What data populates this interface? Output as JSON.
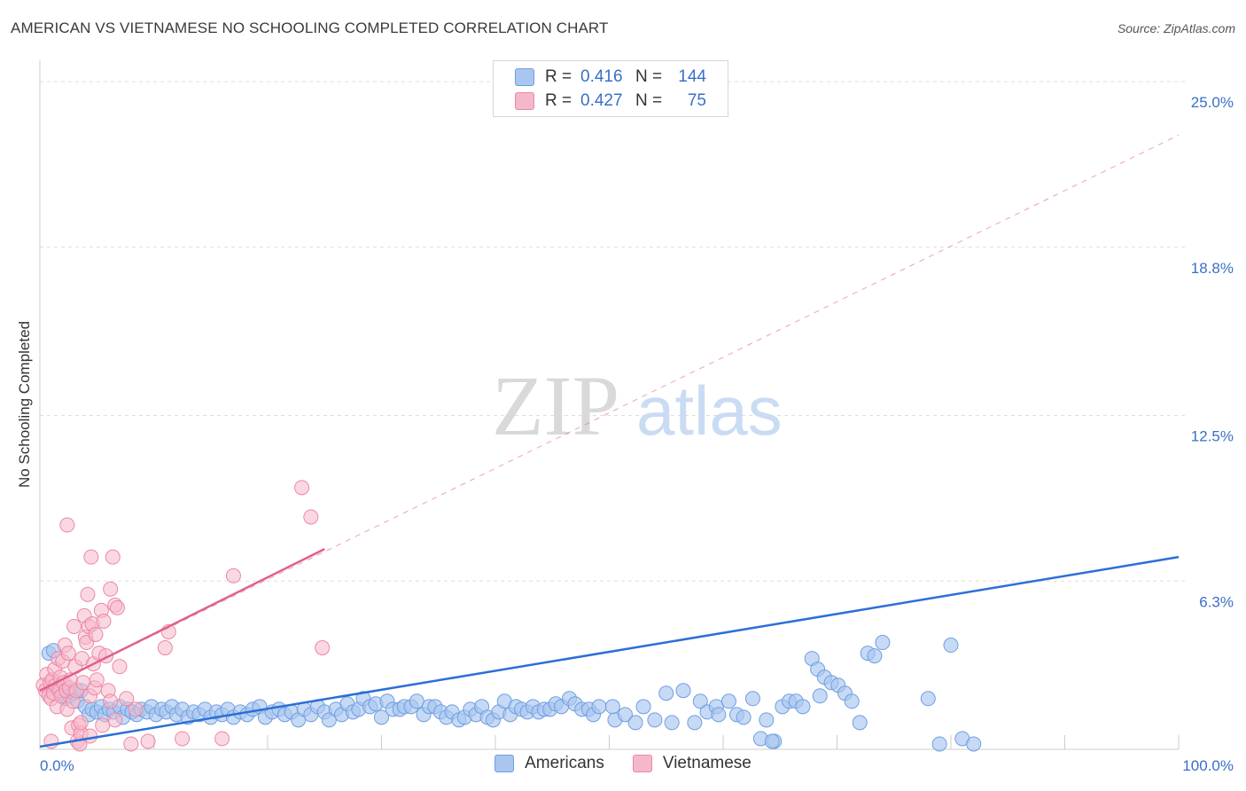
{
  "header": {
    "title": "AMERICAN VS VIETNAMESE NO SCHOOLING COMPLETED CORRELATION CHART",
    "source": "Source: ZipAtlas.com"
  },
  "watermark": {
    "zip": "ZIP",
    "atlas": "atlas"
  },
  "legend": {
    "rows": [
      {
        "r_label": "R =",
        "r_value": "0.416",
        "n_label": "N =",
        "n_value": "144",
        "color": "#a9c6f0"
      },
      {
        "r_label": "R =",
        "r_value": "0.427",
        "n_label": "N =",
        "n_value": "75",
        "color": "#f5b8cb"
      }
    ]
  },
  "bottom_legend": {
    "americans": "Americans",
    "vietnamese": "Vietnamese"
  },
  "colors": {
    "americans_fill": "#a9c6f0",
    "americans_stroke": "#6f9ee0",
    "americans_line": "#2a6fd6",
    "vietnamese_fill": "#f5b8cb",
    "vietnamese_stroke": "#ec87a6",
    "vietnamese_line": "#e0608a",
    "grid": "#dedede",
    "tick_label": "#3a6fc8"
  },
  "chart_data": {
    "type": "scatter",
    "title": "AMERICAN VS VIETNAMESE NO SCHOOLING COMPLETED CORRELATION CHART",
    "xlabel": "",
    "ylabel": "No Schooling Completed",
    "xlim": [
      0,
      100
    ],
    "ylim": [
      0,
      25.8
    ],
    "x_tick_labels": [
      "0.0%",
      "100.0%"
    ],
    "y_ticks": [
      6.3,
      12.5,
      18.8,
      25.0
    ],
    "y_tick_labels": [
      "6.3%",
      "12.5%",
      "18.8%",
      "25.0%"
    ],
    "grid": true,
    "series": [
      {
        "name": "Americans",
        "r": 0.416,
        "n": 144,
        "trend": {
          "x": [
            0,
            100
          ],
          "y": [
            0.1,
            7.2
          ]
        },
        "points": [
          [
            0.8,
            3.6
          ],
          [
            1.2,
            3.7
          ],
          [
            1.5,
            2.3
          ],
          [
            1.8,
            2.1
          ],
          [
            2.2,
            1.9
          ],
          [
            2.6,
            2.0
          ],
          [
            3.0,
            2.1
          ],
          [
            3.3,
            1.8
          ],
          [
            3.6,
            2.2
          ],
          [
            4.0,
            1.6
          ],
          [
            4.3,
            1.3
          ],
          [
            4.6,
            1.5
          ],
          [
            5.0,
            1.4
          ],
          [
            5.4,
            1.6
          ],
          [
            5.7,
            1.3
          ],
          [
            6.1,
            1.5
          ],
          [
            6.5,
            1.4
          ],
          [
            7.0,
            1.6
          ],
          [
            7.3,
            1.2
          ],
          [
            7.7,
            1.5
          ],
          [
            8.1,
            1.4
          ],
          [
            8.5,
            1.3
          ],
          [
            8.9,
            1.5
          ],
          [
            9.4,
            1.4
          ],
          [
            9.8,
            1.6
          ],
          [
            10.2,
            1.3
          ],
          [
            10.7,
            1.5
          ],
          [
            11.1,
            1.4
          ],
          [
            11.6,
            1.6
          ],
          [
            12.0,
            1.3
          ],
          [
            12.5,
            1.5
          ],
          [
            13.0,
            1.2
          ],
          [
            13.5,
            1.4
          ],
          [
            14.0,
            1.3
          ],
          [
            14.5,
            1.5
          ],
          [
            15.0,
            1.2
          ],
          [
            15.5,
            1.4
          ],
          [
            16.0,
            1.3
          ],
          [
            16.5,
            1.5
          ],
          [
            17.0,
            1.2
          ],
          [
            17.6,
            1.4
          ],
          [
            18.2,
            1.3
          ],
          [
            18.7,
            1.5
          ],
          [
            19.3,
            1.6
          ],
          [
            19.8,
            1.2
          ],
          [
            20.4,
            1.4
          ],
          [
            21.0,
            1.5
          ],
          [
            21.5,
            1.3
          ],
          [
            22.1,
            1.4
          ],
          [
            22.7,
            1.1
          ],
          [
            23.2,
            1.5
          ],
          [
            23.8,
            1.3
          ],
          [
            24.4,
            1.6
          ],
          [
            25.0,
            1.4
          ],
          [
            25.4,
            1.1
          ],
          [
            26.0,
            1.5
          ],
          [
            26.5,
            1.3
          ],
          [
            27.0,
            1.7
          ],
          [
            27.5,
            1.4
          ],
          [
            28.0,
            1.5
          ],
          [
            28.4,
            1.9
          ],
          [
            29.0,
            1.6
          ],
          [
            29.5,
            1.7
          ],
          [
            30.0,
            1.2
          ],
          [
            30.5,
            1.8
          ],
          [
            31.0,
            1.5
          ],
          [
            31.6,
            1.5
          ],
          [
            32.0,
            1.6
          ],
          [
            32.6,
            1.6
          ],
          [
            33.1,
            1.8
          ],
          [
            33.7,
            1.3
          ],
          [
            34.2,
            1.6
          ],
          [
            34.7,
            1.6
          ],
          [
            35.2,
            1.4
          ],
          [
            35.7,
            1.2
          ],
          [
            36.2,
            1.4
          ],
          [
            36.8,
            1.1
          ],
          [
            37.3,
            1.2
          ],
          [
            37.8,
            1.5
          ],
          [
            38.3,
            1.3
          ],
          [
            38.8,
            1.6
          ],
          [
            39.3,
            1.2
          ],
          [
            39.8,
            1.1
          ],
          [
            40.3,
            1.4
          ],
          [
            40.8,
            1.8
          ],
          [
            41.3,
            1.3
          ],
          [
            41.8,
            1.6
          ],
          [
            42.3,
            1.5
          ],
          [
            42.8,
            1.4
          ],
          [
            43.3,
            1.6
          ],
          [
            43.8,
            1.4
          ],
          [
            44.3,
            1.5
          ],
          [
            44.8,
            1.5
          ],
          [
            45.3,
            1.7
          ],
          [
            45.8,
            1.6
          ],
          [
            46.5,
            1.9
          ],
          [
            47.0,
            1.7
          ],
          [
            47.6,
            1.5
          ],
          [
            48.2,
            1.5
          ],
          [
            48.6,
            1.3
          ],
          [
            49.1,
            1.6
          ],
          [
            50.3,
            1.6
          ],
          [
            50.5,
            1.1
          ],
          [
            51.4,
            1.3
          ],
          [
            52.3,
            1.0
          ],
          [
            53.0,
            1.6
          ],
          [
            54.0,
            1.1
          ],
          [
            55.0,
            2.1
          ],
          [
            55.5,
            1.0
          ],
          [
            56.5,
            2.2
          ],
          [
            57.5,
            1.0
          ],
          [
            58.0,
            1.8
          ],
          [
            58.6,
            1.4
          ],
          [
            59.4,
            1.6
          ],
          [
            59.6,
            1.3
          ],
          [
            60.5,
            1.8
          ],
          [
            61.2,
            1.3
          ],
          [
            61.8,
            1.2
          ],
          [
            62.6,
            1.9
          ],
          [
            63.3,
            0.4
          ],
          [
            63.8,
            1.1
          ],
          [
            64.5,
            0.3
          ],
          [
            65.2,
            1.6
          ],
          [
            65.8,
            1.8
          ],
          [
            66.4,
            1.8
          ],
          [
            67.0,
            1.6
          ],
          [
            67.8,
            3.4
          ],
          [
            68.3,
            3.0
          ],
          [
            68.9,
            2.7
          ],
          [
            69.5,
            2.5
          ],
          [
            70.1,
            2.4
          ],
          [
            70.7,
            2.1
          ],
          [
            71.3,
            1.8
          ],
          [
            72.0,
            1.0
          ],
          [
            72.7,
            3.6
          ],
          [
            73.3,
            3.5
          ],
          [
            74.0,
            4.0
          ],
          [
            68.5,
            2.0
          ],
          [
            78.0,
            1.9
          ],
          [
            79.0,
            0.2
          ],
          [
            80.0,
            3.9
          ],
          [
            81.0,
            0.4
          ],
          [
            82.0,
            0.2
          ],
          [
            64.3,
            0.3
          ]
        ]
      },
      {
        "name": "Vietnamese",
        "r": 0.427,
        "n": 75,
        "trend": {
          "x": [
            0,
            25
          ],
          "y": [
            2.2,
            7.5
          ],
          "x_ext": [
            0,
            100
          ],
          "y_ext": [
            2.2,
            23.0
          ]
        },
        "points": [
          [
            0.3,
            2.4
          ],
          [
            0.5,
            2.2
          ],
          [
            0.6,
            2.8
          ],
          [
            0.8,
            2.0
          ],
          [
            0.9,
            2.5
          ],
          [
            1.0,
            1.9
          ],
          [
            1.1,
            2.6
          ],
          [
            1.2,
            2.1
          ],
          [
            1.3,
            3.0
          ],
          [
            1.4,
            2.4
          ],
          [
            1.5,
            1.6
          ],
          [
            1.6,
            3.4
          ],
          [
            1.7,
            2.2
          ],
          [
            1.8,
            2.7
          ],
          [
            1.9,
            2.0
          ],
          [
            2.0,
            3.3
          ],
          [
            2.1,
            2.5
          ],
          [
            2.2,
            3.9
          ],
          [
            2.3,
            2.2
          ],
          [
            2.4,
            1.5
          ],
          [
            2.5,
            3.6
          ],
          [
            2.6,
            2.3
          ],
          [
            2.7,
            2.6
          ],
          [
            2.8,
            0.8
          ],
          [
            2.9,
            1.8
          ],
          [
            3.0,
            4.6
          ],
          [
            3.1,
            3.1
          ],
          [
            3.2,
            2.2
          ],
          [
            3.3,
            0.3
          ],
          [
            3.4,
            0.9
          ],
          [
            3.5,
            0.2
          ],
          [
            3.6,
            0.6
          ],
          [
            3.7,
            3.4
          ],
          [
            3.8,
            2.5
          ],
          [
            3.9,
            5.0
          ],
          [
            4.0,
            4.2
          ],
          [
            4.1,
            4.0
          ],
          [
            4.2,
            5.8
          ],
          [
            4.3,
            4.6
          ],
          [
            4.4,
            2.0
          ],
          [
            4.5,
            7.2
          ],
          [
            4.6,
            4.7
          ],
          [
            4.7,
            3.2
          ],
          [
            4.8,
            2.3
          ],
          [
            4.9,
            4.3
          ],
          [
            5.0,
            2.6
          ],
          [
            5.2,
            3.6
          ],
          [
            5.4,
            5.2
          ],
          [
            5.6,
            4.8
          ],
          [
            5.8,
            3.5
          ],
          [
            6.0,
            2.2
          ],
          [
            6.2,
            6.0
          ],
          [
            6.4,
            7.2
          ],
          [
            6.6,
            5.4
          ],
          [
            6.8,
            5.3
          ],
          [
            7.0,
            3.1
          ],
          [
            6.2,
            1.8
          ],
          [
            6.6,
            1.1
          ],
          [
            2.4,
            8.4
          ],
          [
            9.5,
            0.3
          ],
          [
            11.0,
            3.8
          ],
          [
            11.3,
            4.4
          ],
          [
            12.5,
            0.4
          ],
          [
            16.0,
            0.4
          ],
          [
            17.0,
            6.5
          ],
          [
            23.0,
            9.8
          ],
          [
            23.8,
            8.7
          ],
          [
            24.8,
            3.8
          ],
          [
            8.0,
            0.2
          ],
          [
            5.5,
            0.9
          ],
          [
            1.0,
            0.3
          ],
          [
            3.6,
            1.0
          ],
          [
            4.4,
            0.5
          ],
          [
            7.6,
            1.9
          ],
          [
            8.4,
            1.5
          ]
        ]
      }
    ]
  }
}
